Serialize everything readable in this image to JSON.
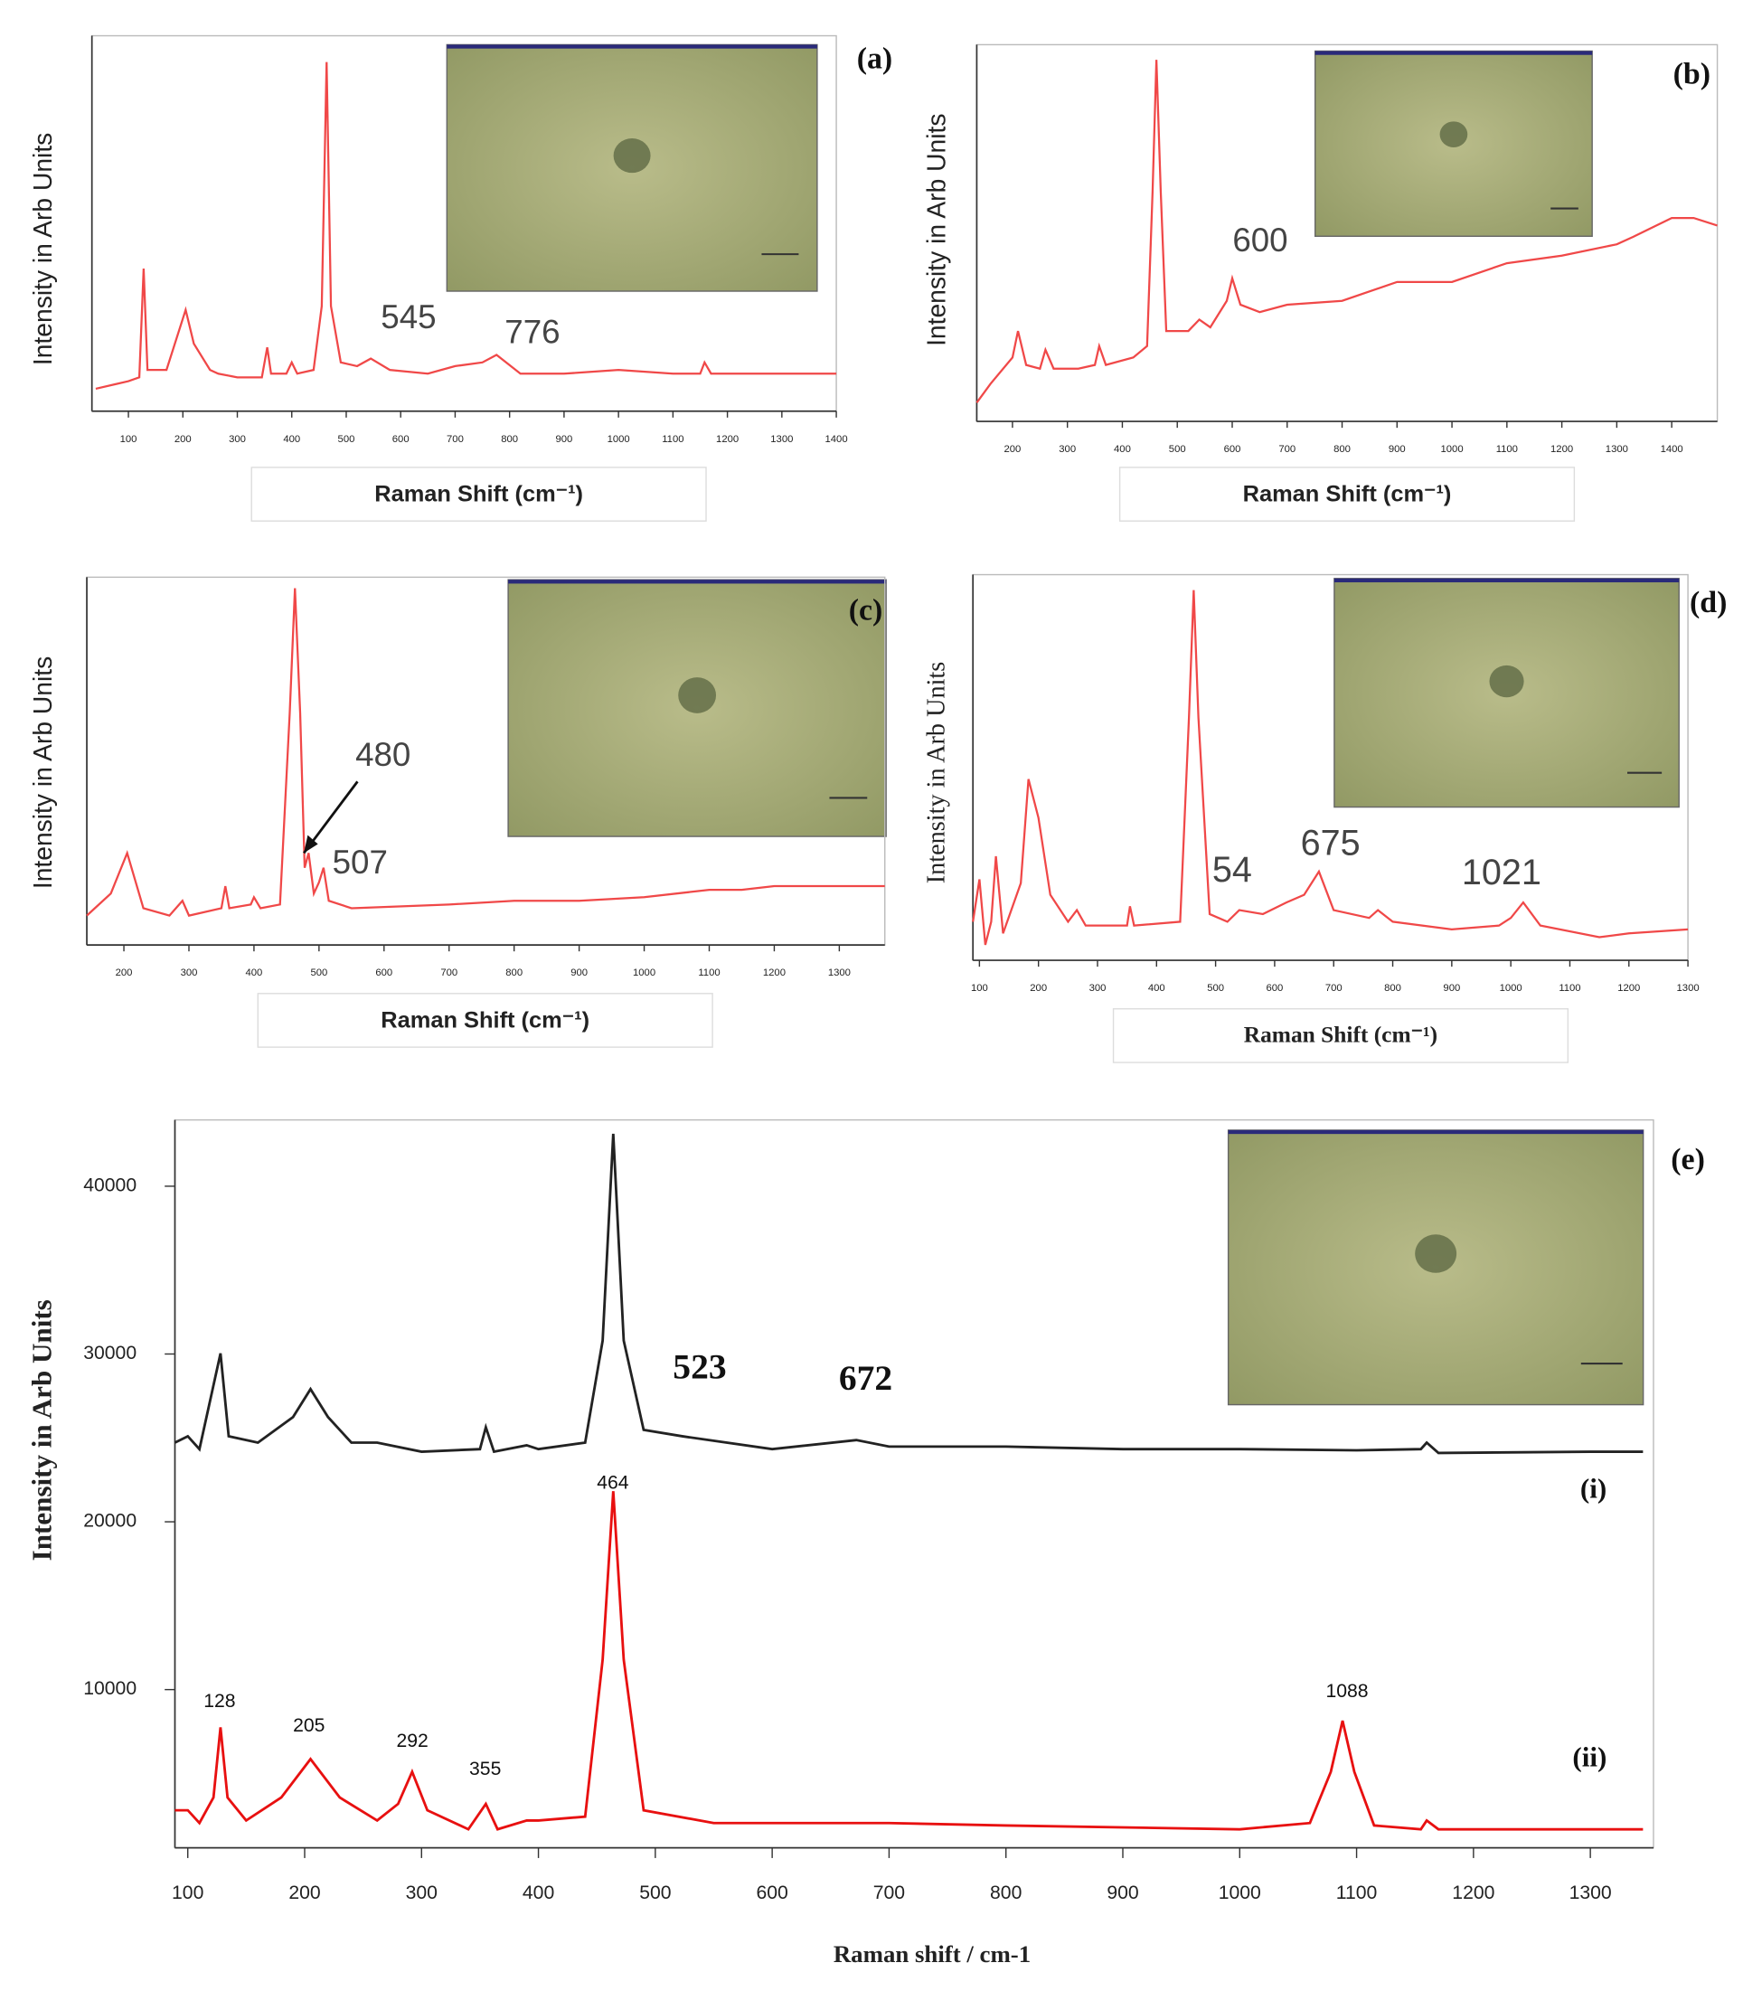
{
  "chart_data": [
    {
      "type": "line",
      "label": "(a)",
      "x_label": "Raman Shift (cm⁻¹)",
      "y_label": "Intensity in Arb Units",
      "x": [
        40,
        100,
        120,
        128,
        135,
        170,
        205,
        220,
        250,
        265,
        300,
        345,
        355,
        362,
        390,
        400,
        410,
        440,
        455,
        464,
        472,
        490,
        520,
        545,
        580,
        650,
        700,
        750,
        776,
        820,
        900,
        1000,
        1100,
        1150,
        1158,
        1170,
        1300,
        1400
      ],
      "series": [
        {
          "color": "#f04848",
          "values": [
            6,
            8,
            9,
            38,
            11,
            11,
            27,
            18,
            11,
            10,
            9,
            9,
            17,
            10,
            10,
            13,
            10,
            11,
            28,
            93,
            28,
            13,
            12,
            14,
            11,
            10,
            12,
            13,
            15,
            10,
            10,
            11,
            10,
            10,
            13,
            10,
            10,
            10
          ]
        }
      ],
      "xlim": [
        33,
        1400
      ],
      "xticks": [
        100,
        200,
        300,
        400,
        500,
        600,
        700,
        800,
        900,
        1000,
        1100,
        1200,
        1300,
        1400
      ],
      "ylim": [
        0,
        100
      ],
      "annotations": [
        {
          "text": "545"
        },
        {
          "text": "776"
        }
      ]
    },
    {
      "type": "line",
      "label": "(b)",
      "x_label": "Raman Shift (cm⁻¹)",
      "y_label": "Intensity in Arb Units",
      "x": [
        135,
        160,
        200,
        210,
        225,
        250,
        260,
        275,
        320,
        350,
        358,
        370,
        420,
        445,
        455,
        462,
        470,
        480,
        520,
        540,
        560,
        590,
        600,
        615,
        650,
        700,
        800,
        900,
        1000,
        1100,
        1200,
        1300,
        1330,
        1400,
        1440,
        1483
      ],
      "series": [
        {
          "color": "#f04848",
          "values": [
            5,
            10,
            17,
            24,
            15,
            14,
            19,
            14,
            14,
            15,
            20,
            15,
            17,
            20,
            61,
            96,
            61,
            24,
            24,
            27,
            25,
            32,
            38,
            31,
            29,
            31,
            32,
            37,
            37,
            42,
            44,
            47,
            49,
            54,
            54,
            52
          ]
        }
      ],
      "xlim": [
        135,
        1483
      ],
      "xticks": [
        200,
        300,
        400,
        500,
        600,
        700,
        800,
        900,
        1000,
        1100,
        1200,
        1300,
        1400
      ],
      "ylim": [
        0,
        100
      ],
      "annotations": [
        {
          "text": "600"
        }
      ]
    },
    {
      "type": "line",
      "label": "(c)",
      "x_label": "Raman Shift (cm⁻¹)",
      "y_label": "Intensity in Arb Units",
      "x": [
        143,
        180,
        205,
        230,
        270,
        290,
        300,
        350,
        356,
        362,
        395,
        400,
        410,
        440,
        455,
        463,
        471,
        478,
        484,
        492,
        500,
        507,
        515,
        550,
        700,
        800,
        900,
        1000,
        1100,
        1150,
        1200,
        1300,
        1370
      ],
      "series": [
        {
          "color": "#f04848",
          "values": [
            8,
            14,
            25,
            10,
            8,
            12,
            8,
            10,
            16,
            10,
            11,
            13,
            10,
            11,
            63,
            97,
            63,
            21,
            25,
            14,
            17,
            21,
            12,
            10,
            11,
            12,
            12,
            13,
            15,
            15,
            16,
            16,
            16
          ]
        }
      ],
      "xlim": [
        143,
        1370
      ],
      "xticks": [
        200,
        300,
        400,
        500,
        600,
        700,
        800,
        900,
        1000,
        1100,
        1200,
        1300
      ],
      "ylim": [
        0,
        100
      ],
      "annotations": [
        {
          "text": "480"
        },
        {
          "text": "507"
        }
      ]
    },
    {
      "type": "line",
      "label": "(d)",
      "x_label": "Raman Shift (cm⁻¹)",
      "y_label": "Intensity in Arb Units",
      "x": [
        89,
        100,
        110,
        120,
        128,
        140,
        170,
        183,
        200,
        220,
        250,
        265,
        280,
        350,
        355,
        362,
        440,
        455,
        463,
        471,
        490,
        520,
        540,
        580,
        620,
        650,
        675,
        700,
        760,
        775,
        800,
        900,
        980,
        1000,
        1021,
        1050,
        1150,
        1200,
        1300
      ],
      "series": [
        {
          "color": "#f04848",
          "values": [
            10,
            21,
            4,
            10,
            27,
            7,
            20,
            47,
            37,
            17,
            10,
            13,
            9,
            9,
            14,
            9,
            10,
            63,
            96,
            63,
            12,
            10,
            13,
            12,
            15,
            17,
            23,
            13,
            11,
            13,
            10,
            8,
            9,
            11,
            15,
            9,
            6,
            7,
            8
          ]
        }
      ],
      "xlim": [
        89,
        1300
      ],
      "xticks": [
        100,
        200,
        300,
        400,
        500,
        600,
        700,
        800,
        900,
        1000,
        1100,
        1200,
        1300
      ],
      "ylim": [
        0,
        100
      ],
      "annotations": [
        {
          "text": "54"
        },
        {
          "text": "675"
        },
        {
          "text": "1021"
        }
      ]
    },
    {
      "type": "line",
      "label": "(e)",
      "x_label": "Raman shift / cm-1",
      "y_label": "Intensity in Arb Units",
      "x": [
        89,
        100,
        110,
        128,
        135,
        160,
        190,
        205,
        220,
        240,
        262,
        300,
        350,
        355,
        362,
        390,
        400,
        440,
        455,
        464,
        473,
        490,
        523,
        600,
        672,
        700,
        800,
        900,
        1000,
        1100,
        1155,
        1160,
        1170,
        1300,
        1345
      ],
      "series": [
        {
          "name": "(i)",
          "color": "#222222",
          "values": [
            24720,
            25100,
            24330,
            30040,
            25100,
            24720,
            26240,
            27910,
            26240,
            24720,
            24720,
            24180,
            24330,
            25630,
            24180,
            24560,
            24330,
            24720,
            30800,
            43120,
            30800,
            25480,
            25100,
            24330,
            24870,
            24480,
            24480,
            24330,
            24330,
            24260,
            24330,
            24720,
            24100,
            24180,
            24180
          ]
        }
      ],
      "x2": [
        89,
        100,
        110,
        122,
        128,
        134,
        150,
        180,
        205,
        230,
        262,
        280,
        292,
        305,
        340,
        355,
        365,
        390,
        400,
        440,
        455,
        464,
        473,
        490,
        550,
        700,
        800,
        1000,
        1060,
        1078,
        1088,
        1098,
        1115,
        1155,
        1160,
        1170,
        1345
      ],
      "series2": [
        {
          "name": "(ii)",
          "color": "#e81010",
          "values": [
            2810,
            2810,
            2050,
            3570,
            7750,
            3570,
            2200,
            3570,
            5860,
            3570,
            2200,
            3190,
            5100,
            2810,
            1670,
            3190,
            1670,
            2200,
            2200,
            2430,
            11790,
            21830,
            11790,
            2810,
            2050,
            2050,
            1900,
            1670,
            2050,
            5100,
            8140,
            5100,
            1900,
            1670,
            2200,
            1670,
            1670
          ]
        }
      ],
      "xlim": [
        89,
        1354
      ],
      "xticks": [
        100,
        200,
        300,
        400,
        500,
        600,
        700,
        800,
        900,
        1000,
        1100,
        1200,
        1300
      ],
      "ylim": [
        570,
        43950
      ],
      "yticks": [
        10000,
        20000,
        30000,
        40000
      ],
      "annotations": [
        {
          "text": "523"
        },
        {
          "text": "672"
        },
        {
          "text": "128"
        },
        {
          "text": "205"
        },
        {
          "text": "292"
        },
        {
          "text": "355"
        },
        {
          "text": "464"
        },
        {
          "text": "1088"
        }
      ]
    }
  ]
}
